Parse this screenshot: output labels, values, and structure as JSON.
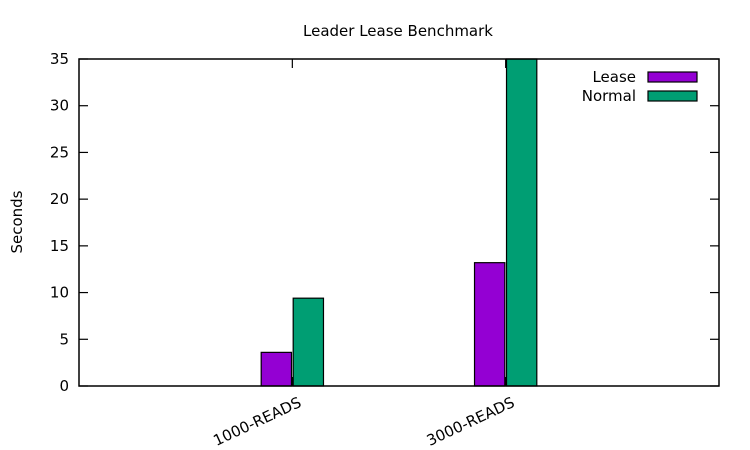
{
  "chart_data": {
    "type": "bar",
    "title": "Leader Lease Benchmark",
    "xlabel": "",
    "ylabel": "Seconds",
    "categories": [
      "1000-READS",
      "3000-READS"
    ],
    "series": [
      {
        "name": "Lease",
        "values": [
          3.6,
          13.2
        ],
        "color": "#9400d3"
      },
      {
        "name": "Normal",
        "values": [
          9.4,
          35.0
        ],
        "color": "#009e73"
      }
    ],
    "ylim": [
      0,
      35
    ],
    "yticks": [
      0,
      5,
      10,
      15,
      20,
      25,
      30,
      35
    ],
    "grid": false,
    "legend_position": "top-right",
    "bar_stroke": "#000000"
  }
}
